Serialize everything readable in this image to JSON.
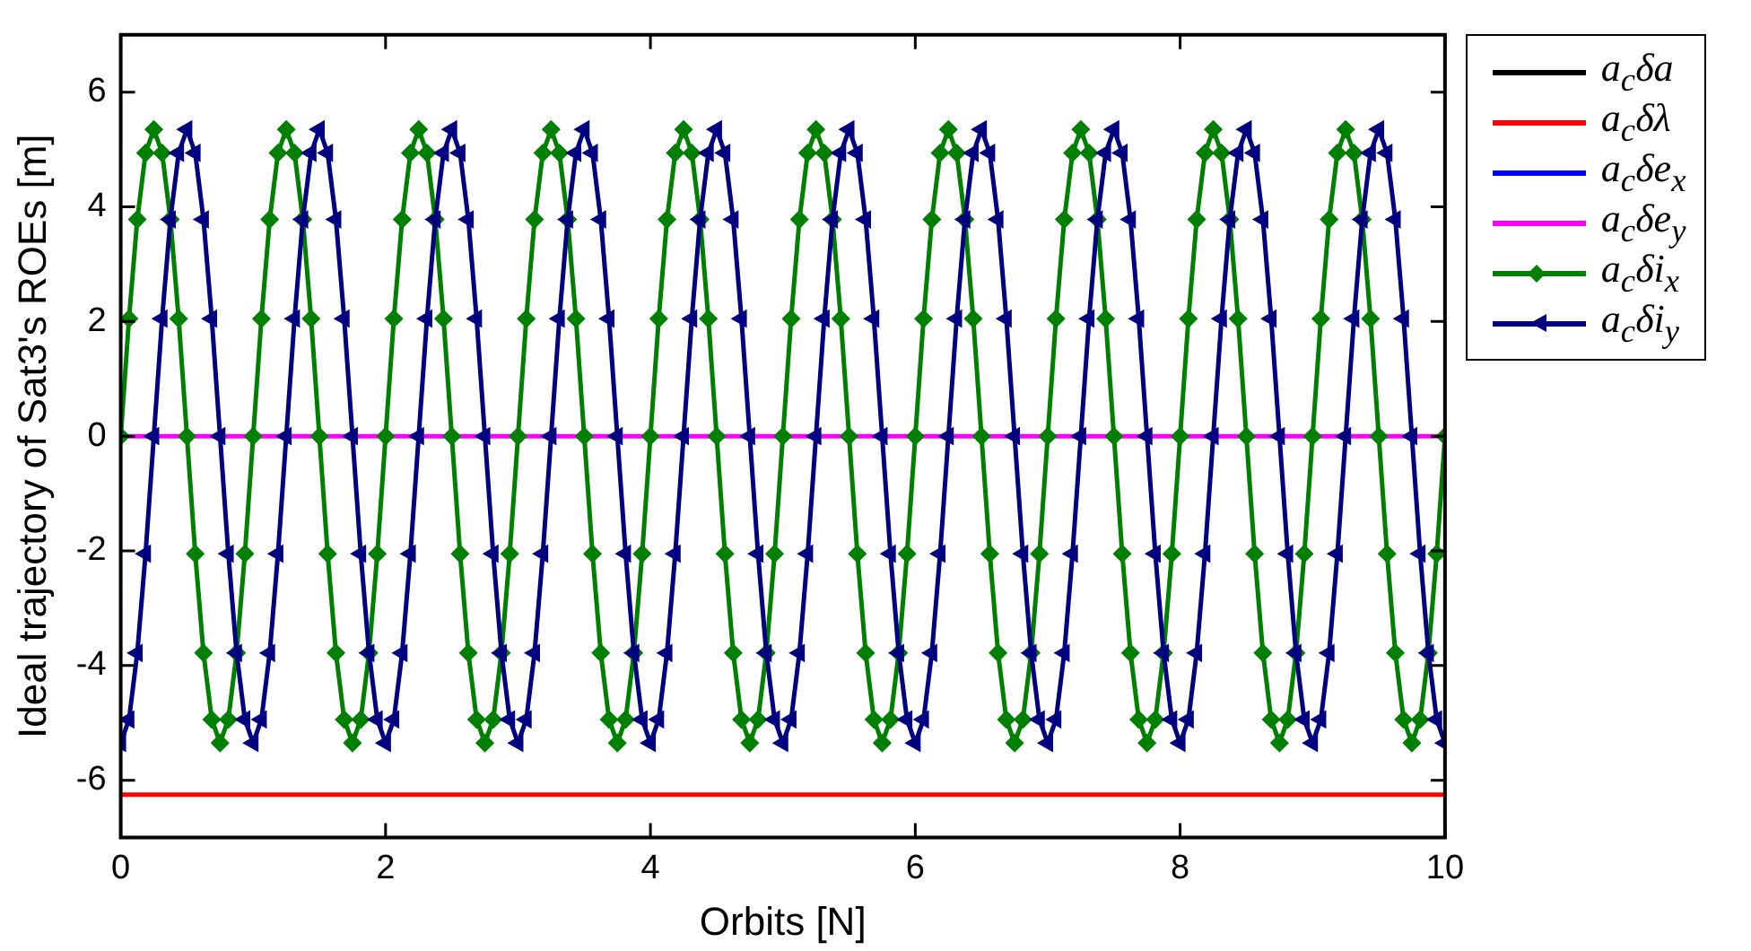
{
  "chart_data": {
    "type": "line",
    "xlabel": "Orbits [N]",
    "ylabel": "Ideal trajectory of Sat3's ROEs [m]",
    "xlim": [
      0,
      10
    ],
    "xticks": [
      0,
      2,
      4,
      6,
      8,
      10
    ],
    "ylim": [
      -7,
      7
    ],
    "yticks": [
      -6,
      -4,
      -2,
      0,
      2,
      4,
      6
    ],
    "grid": false,
    "legend": "right",
    "line_style": "solid",
    "series": [
      {
        "name": "a$_{c}$δa",
        "color": "#000000",
        "marker": "none"
      },
      {
        "name": "a$_{c}$δλ",
        "color": "#ff0000",
        "marker": "none",
        "x": [
          0,
          10
        ],
        "values": [
          -6.25,
          -6.25
        ]
      },
      {
        "name": "a$_{c}$δe$_{x}$",
        "color": "#0000ff",
        "marker": "none"
      },
      {
        "name": "a$_{c}$δe$_{y}$",
        "color": "#ff00ff",
        "marker": "none",
        "x": [
          0,
          10
        ],
        "values": [
          0,
          0
        ]
      },
      {
        "name": "a$_{c}$δi$_{x}$",
        "color": "#008000",
        "marker": "diamond",
        "x": [
          0,
          0.0625,
          0.125,
          0.1875,
          0.25,
          0.3125,
          0.375,
          0.4375,
          0.5,
          0.5625,
          0.625,
          0.6875,
          0.75,
          0.8125,
          0.875,
          0.9375,
          1,
          1.0625,
          1.125,
          1.1875,
          1.25,
          1.3125,
          1.375,
          1.4375,
          1.5,
          1.5625,
          1.625,
          1.6875,
          1.75,
          1.8125,
          1.875,
          1.9375,
          2,
          2.0625,
          2.125,
          2.1875,
          2.25,
          2.3125,
          2.375,
          2.4375,
          2.5,
          2.5625,
          2.625,
          2.6875,
          2.75,
          2.8125,
          2.875,
          2.9375,
          3,
          3.0625,
          3.125,
          3.1875,
          3.25,
          3.3125,
          3.375,
          3.4375,
          3.5,
          3.5625,
          3.625,
          3.6875,
          3.75,
          3.8125,
          3.875,
          3.9375,
          4,
          4.0625,
          4.125,
          4.1875,
          4.25,
          4.3125,
          4.375,
          4.4375,
          4.5,
          4.5625,
          4.625,
          4.6875,
          4.75,
          4.8125,
          4.875,
          4.9375,
          5,
          5.0625,
          5.125,
          5.1875,
          5.25,
          5.3125,
          5.375,
          5.4375,
          5.5,
          5.5625,
          5.625,
          5.6875,
          5.75,
          5.8125,
          5.875,
          5.9375,
          6,
          6.0625,
          6.125,
          6.1875,
          6.25,
          6.3125,
          6.375,
          6.4375,
          6.5,
          6.5625,
          6.625,
          6.6875,
          6.75,
          6.8125,
          6.875,
          6.9375,
          7,
          7.0625,
          7.125,
          7.1875,
          7.25,
          7.3125,
          7.375,
          7.4375,
          7.5,
          7.5625,
          7.625,
          7.6875,
          7.75,
          7.8125,
          7.875,
          7.9375,
          8,
          8.0625,
          8.125,
          8.1875,
          8.25,
          8.3125,
          8.375,
          8.4375,
          8.5,
          8.5625,
          8.625,
          8.6875,
          8.75,
          8.8125,
          8.875,
          8.9375,
          9,
          9.0625,
          9.125,
          9.1875,
          9.25,
          9.3125,
          9.375,
          9.4375,
          9.5,
          9.5625,
          9.625,
          9.6875,
          9.75,
          9.8125,
          9.875,
          9.9375,
          10
        ],
        "values": [
          0,
          2.05,
          3.78,
          4.94,
          5.35,
          4.94,
          3.78,
          2.05,
          0,
          -2.05,
          -3.78,
          -4.94,
          -5.35,
          -4.94,
          -3.78,
          -2.05,
          0,
          2.05,
          3.78,
          4.94,
          5.35,
          4.94,
          3.78,
          2.05,
          0,
          -2.05,
          -3.78,
          -4.94,
          -5.35,
          -4.94,
          -3.78,
          -2.05,
          0,
          2.05,
          3.78,
          4.94,
          5.35,
          4.94,
          3.78,
          2.05,
          0,
          -2.05,
          -3.78,
          -4.94,
          -5.35,
          -4.94,
          -3.78,
          -2.05,
          0,
          2.05,
          3.78,
          4.94,
          5.35,
          4.94,
          3.78,
          2.05,
          0,
          -2.05,
          -3.78,
          -4.94,
          -5.35,
          -4.94,
          -3.78,
          -2.05,
          0,
          2.05,
          3.78,
          4.94,
          5.35,
          4.94,
          3.78,
          2.05,
          0,
          -2.05,
          -3.78,
          -4.94,
          -5.35,
          -4.94,
          -3.78,
          -2.05,
          0,
          2.05,
          3.78,
          4.94,
          5.35,
          4.94,
          3.78,
          2.05,
          0,
          -2.05,
          -3.78,
          -4.94,
          -5.35,
          -4.94,
          -3.78,
          -2.05,
          0,
          2.05,
          3.78,
          4.94,
          5.35,
          4.94,
          3.78,
          2.05,
          0,
          -2.05,
          -3.78,
          -4.94,
          -5.35,
          -4.94,
          -3.78,
          -2.05,
          0,
          2.05,
          3.78,
          4.94,
          5.35,
          4.94,
          3.78,
          2.05,
          0,
          -2.05,
          -3.78,
          -4.94,
          -5.35,
          -4.94,
          -3.78,
          -2.05,
          0,
          2.05,
          3.78,
          4.94,
          5.35,
          4.94,
          3.78,
          2.05,
          0,
          -2.05,
          -3.78,
          -4.94,
          -5.35,
          -4.94,
          -3.78,
          -2.05,
          0,
          2.05,
          3.78,
          4.94,
          5.35,
          4.94,
          3.78,
          2.05,
          0,
          -2.05,
          -3.78,
          -4.94,
          -5.35,
          -4.94,
          -3.78,
          -2.05,
          0
        ]
      },
      {
        "name": "a$_{c}$δi$_{y}$",
        "color": "#000080",
        "marker": "triangle",
        "x": [
          0,
          0.0625,
          0.125,
          0.1875,
          0.25,
          0.3125,
          0.375,
          0.4375,
          0.5,
          0.5625,
          0.625,
          0.6875,
          0.75,
          0.8125,
          0.875,
          0.9375,
          1,
          1.0625,
          1.125,
          1.1875,
          1.25,
          1.3125,
          1.375,
          1.4375,
          1.5,
          1.5625,
          1.625,
          1.6875,
          1.75,
          1.8125,
          1.875,
          1.9375,
          2,
          2.0625,
          2.125,
          2.1875,
          2.25,
          2.3125,
          2.375,
          2.4375,
          2.5,
          2.5625,
          2.625,
          2.6875,
          2.75,
          2.8125,
          2.875,
          2.9375,
          3,
          3.0625,
          3.125,
          3.1875,
          3.25,
          3.3125,
          3.375,
          3.4375,
          3.5,
          3.5625,
          3.625,
          3.6875,
          3.75,
          3.8125,
          3.875,
          3.9375,
          4,
          4.0625,
          4.125,
          4.1875,
          4.25,
          4.3125,
          4.375,
          4.4375,
          4.5,
          4.5625,
          4.625,
          4.6875,
          4.75,
          4.8125,
          4.875,
          4.9375,
          5,
          5.0625,
          5.125,
          5.1875,
          5.25,
          5.3125,
          5.375,
          5.4375,
          5.5,
          5.5625,
          5.625,
          5.6875,
          5.75,
          5.8125,
          5.875,
          5.9375,
          6,
          6.0625,
          6.125,
          6.1875,
          6.25,
          6.3125,
          6.375,
          6.4375,
          6.5,
          6.5625,
          6.625,
          6.6875,
          6.75,
          6.8125,
          6.875,
          6.9375,
          7,
          7.0625,
          7.125,
          7.1875,
          7.25,
          7.3125,
          7.375,
          7.4375,
          7.5,
          7.5625,
          7.625,
          7.6875,
          7.75,
          7.8125,
          7.875,
          7.9375,
          8,
          8.0625,
          8.125,
          8.1875,
          8.25,
          8.3125,
          8.375,
          8.4375,
          8.5,
          8.5625,
          8.625,
          8.6875,
          8.75,
          8.8125,
          8.875,
          8.9375,
          9,
          9.0625,
          9.125,
          9.1875,
          9.25,
          9.3125,
          9.375,
          9.4375,
          9.5,
          9.5625,
          9.625,
          9.6875,
          9.75,
          9.8125,
          9.875,
          9.9375,
          10
        ],
        "values": [
          -5.35,
          -4.94,
          -3.78,
          -2.05,
          0,
          2.05,
          3.78,
          4.94,
          5.35,
          4.94,
          3.78,
          2.05,
          0,
          -2.05,
          -3.78,
          -4.94,
          -5.35,
          -4.94,
          -3.78,
          -2.05,
          0,
          2.05,
          3.78,
          4.94,
          5.35,
          4.94,
          3.78,
          2.05,
          0,
          -2.05,
          -3.78,
          -4.94,
          -5.35,
          -4.94,
          -3.78,
          -2.05,
          0,
          2.05,
          3.78,
          4.94,
          5.35,
          4.94,
          3.78,
          2.05,
          0,
          -2.05,
          -3.78,
          -4.94,
          -5.35,
          -4.94,
          -3.78,
          -2.05,
          0,
          2.05,
          3.78,
          4.94,
          5.35,
          4.94,
          3.78,
          2.05,
          0,
          -2.05,
          -3.78,
          -4.94,
          -5.35,
          -4.94,
          -3.78,
          -2.05,
          0,
          2.05,
          3.78,
          4.94,
          5.35,
          4.94,
          3.78,
          2.05,
          0,
          -2.05,
          -3.78,
          -4.94,
          -5.35,
          -4.94,
          -3.78,
          -2.05,
          0,
          2.05,
          3.78,
          4.94,
          5.35,
          4.94,
          3.78,
          2.05,
          0,
          -2.05,
          -3.78,
          -4.94,
          -5.35,
          -4.94,
          -3.78,
          -2.05,
          0,
          2.05,
          3.78,
          4.94,
          5.35,
          4.94,
          3.78,
          2.05,
          0,
          -2.05,
          -3.78,
          -4.94,
          -5.35,
          -4.94,
          -3.78,
          -2.05,
          0,
          2.05,
          3.78,
          4.94,
          5.35,
          4.94,
          3.78,
          2.05,
          0,
          -2.05,
          -3.78,
          -4.94,
          -5.35,
          -4.94,
          -3.78,
          -2.05,
          0,
          2.05,
          3.78,
          4.94,
          5.35,
          4.94,
          3.78,
          2.05,
          0,
          -2.05,
          -3.78,
          -4.94,
          -5.35,
          -4.94,
          -3.78,
          -2.05,
          0,
          2.05,
          3.78,
          4.94,
          5.35,
          4.94,
          3.78,
          2.05,
          0,
          -2.05,
          -3.78,
          -4.94,
          -5.35
        ]
      }
    ]
  }
}
